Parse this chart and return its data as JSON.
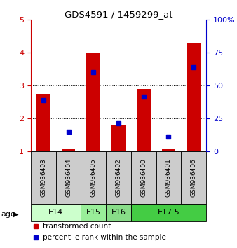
{
  "title": "GDS4591 / 1459299_at",
  "samples": [
    "GSM936403",
    "GSM936404",
    "GSM936405",
    "GSM936402",
    "GSM936400",
    "GSM936401",
    "GSM936406"
  ],
  "red_bar_heights": [
    2.75,
    1.05,
    4.0,
    1.78,
    2.9,
    1.05,
    4.3
  ],
  "blue_square_values": [
    2.55,
    1.6,
    3.4,
    1.85,
    2.65,
    1.45,
    3.55
  ],
  "ylim": [
    1,
    5
  ],
  "yticks_left": [
    1,
    2,
    3,
    4,
    5
  ],
  "yticks_right": [
    0,
    25,
    50,
    75,
    100
  ],
  "ylabel_left_color": "#cc0000",
  "ylabel_right_color": "#0000cc",
  "age_groups": [
    {
      "label": "E14",
      "start": 0,
      "end": 2,
      "color": "#ccffcc"
    },
    {
      "label": "E15",
      "start": 2,
      "end": 3,
      "color": "#99ee99"
    },
    {
      "label": "E16",
      "start": 3,
      "end": 4,
      "color": "#88dd88"
    },
    {
      "label": "E17.5",
      "start": 4,
      "end": 7,
      "color": "#44cc44"
    }
  ],
  "bar_color": "#cc0000",
  "square_color": "#0000cc",
  "sample_box_color": "#cccccc",
  "legend_items": [
    "transformed count",
    "percentile rank within the sample"
  ],
  "bar_width": 0.55,
  "base_value": 1.0
}
